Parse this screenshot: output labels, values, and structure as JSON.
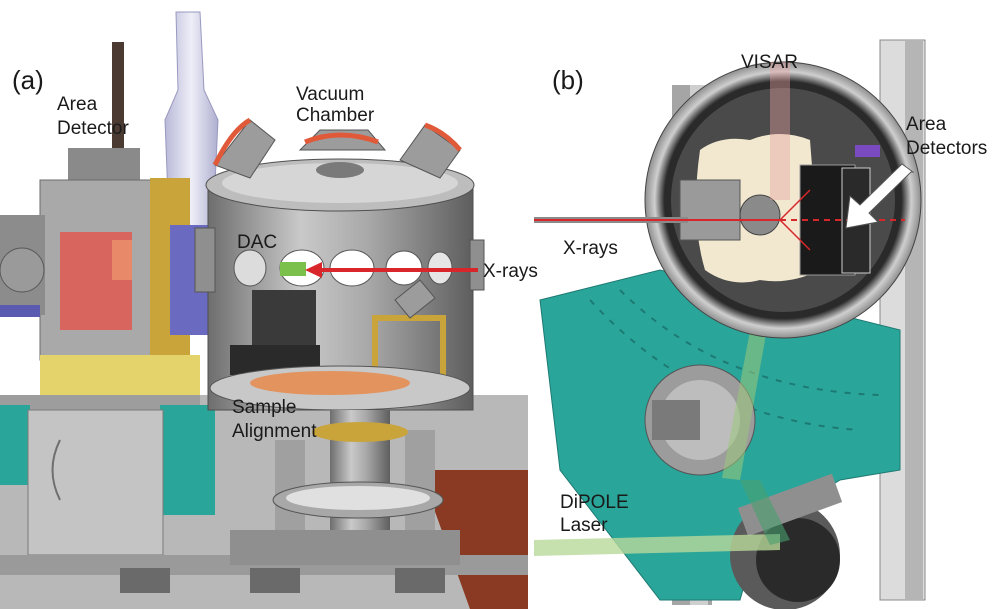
{
  "panels": [
    {
      "letter": "(a)",
      "labels": {
        "area_detector": [
          "Area",
          "Detector"
        ],
        "vacuum_chamber": [
          "Vacuum",
          "Chamber"
        ],
        "dac": "DAC",
        "xrays": "X-rays",
        "sample_alignment": [
          "Sample",
          "Alignment"
        ]
      }
    },
    {
      "letter": "(b)",
      "labels": {
        "visar": "VISAR",
        "area_detectors": [
          "Area",
          "Detectors"
        ],
        "xrays": "X-rays",
        "dipole_laser": [
          "DiPOLE",
          "Laser"
        ]
      }
    }
  ],
  "colors": {
    "xray_beam": "#d9262b",
    "chamber_teal": "#2aa59a",
    "detector_red": "#d9665e",
    "steel_gray": "#9a9a9a",
    "floor_brown": "#8a3a22",
    "laser_green": "#b8d89a"
  }
}
